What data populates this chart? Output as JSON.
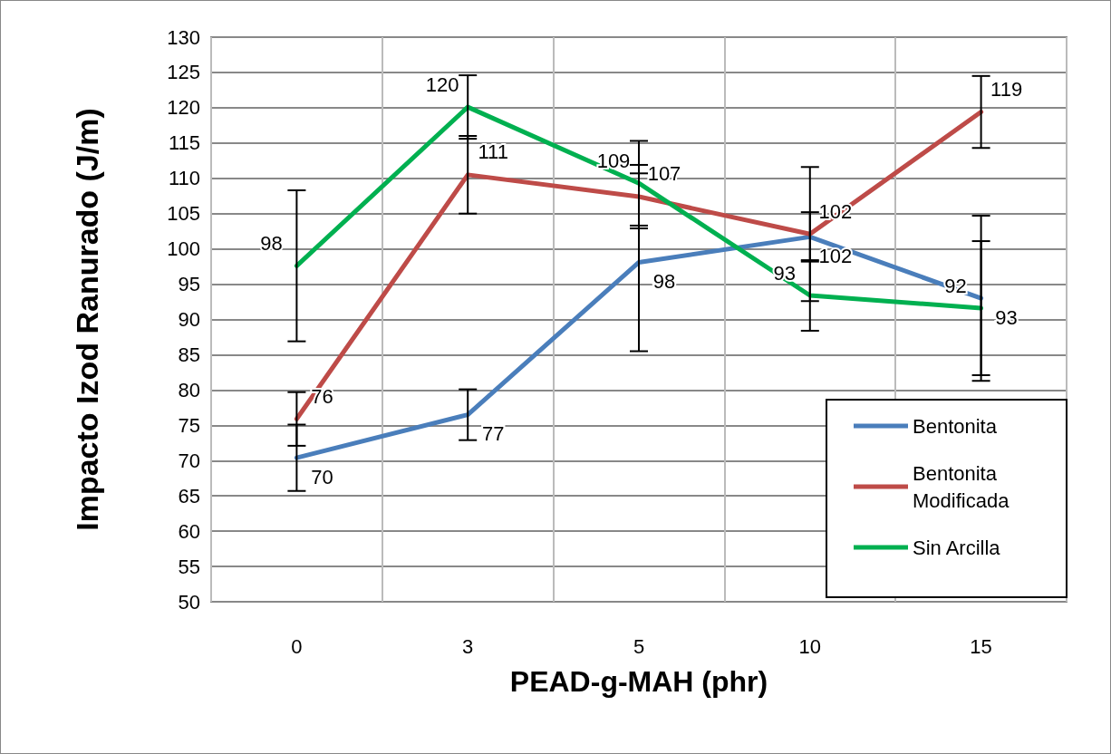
{
  "chart_data": {
    "type": "line",
    "xlabel": "PEAD-g-MAH (phr)",
    "ylabel": "Impacto Izod Ranurado (J/m)",
    "categories": [
      "0",
      "3",
      "5",
      "10",
      "15"
    ],
    "series": [
      {
        "name": "Bentonita",
        "color": "#4a7ebb",
        "values": [
          70.4,
          76.5,
          98.1,
          101.7,
          93.0
        ],
        "errors": [
          4.7,
          3.6,
          12.6,
          3.5,
          11.7
        ],
        "value_labels": [
          "70",
          "77",
          "98",
          "102",
          "93"
        ]
      },
      {
        "name": "Bentonita Modificada",
        "color": "#be4b48",
        "values": [
          75.9,
          110.5,
          107.4,
          102.1,
          119.4
        ],
        "errors": [
          3.8,
          5.5,
          4.5,
          9.5,
          5.1
        ],
        "value_labels": [
          "76",
          "111",
          "107",
          "102",
          "119"
        ]
      },
      {
        "name": "Sin Arcilla",
        "color": "#00b050",
        "values": [
          97.6,
          120.1,
          109.3,
          93.4,
          91.6
        ],
        "errors": [
          10.7,
          4.5,
          6.0,
          5.0,
          9.5
        ],
        "value_labels": [
          "98",
          "120",
          "109",
          "93",
          "92"
        ]
      }
    ],
    "ylim": [
      50,
      130
    ],
    "yticks": [
      50,
      55,
      60,
      65,
      70,
      75,
      80,
      85,
      90,
      95,
      100,
      105,
      110,
      115,
      120,
      125,
      130
    ],
    "grid": true,
    "legend": "bottom right",
    "marker": "none",
    "line_style": "solid"
  }
}
